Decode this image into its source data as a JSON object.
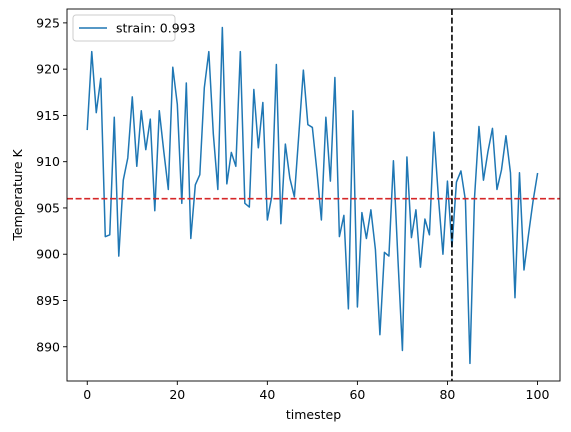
{
  "chart_data": {
    "type": "line",
    "title": "",
    "xlabel": "timestep",
    "ylabel": "Temperature K",
    "xlim": [
      -4.5,
      105
    ],
    "ylim": [
      886.3,
      926.5
    ],
    "xticks": [
      0,
      20,
      40,
      60,
      80,
      100
    ],
    "yticks": [
      890,
      895,
      900,
      905,
      910,
      915,
      920,
      925
    ],
    "grid": false,
    "legend_location": "upper left",
    "series": [
      {
        "name": "strain: 0.993",
        "color": "#1f77b4",
        "x": [
          0,
          1,
          2,
          3,
          4,
          5,
          6,
          7,
          8,
          9,
          10,
          11,
          12,
          13,
          14,
          15,
          16,
          17,
          18,
          19,
          20,
          21,
          22,
          23,
          24,
          25,
          26,
          27,
          28,
          29,
          30,
          31,
          32,
          33,
          34,
          35,
          36,
          37,
          38,
          39,
          40,
          41,
          42,
          43,
          44,
          45,
          46,
          47,
          48,
          49,
          50,
          51,
          52,
          53,
          54,
          55,
          56,
          57,
          58,
          59,
          60,
          61,
          62,
          63,
          64,
          65,
          66,
          67,
          68,
          69,
          70,
          71,
          72,
          73,
          74,
          75,
          76,
          77,
          78,
          79,
          80,
          81,
          82,
          83,
          84,
          85,
          86,
          87,
          88,
          89,
          90,
          91,
          92,
          93,
          94,
          95,
          96,
          97,
          98,
          99,
          100
        ],
        "y": [
          913.5,
          921.9,
          915.3,
          919.0,
          901.9,
          902.1,
          914.8,
          899.8,
          908.0,
          910.4,
          917.0,
          909.5,
          915.5,
          911.3,
          914.6,
          904.7,
          915.5,
          911.1,
          907.0,
          920.2,
          916.2,
          905.5,
          918.5,
          901.7,
          907.5,
          908.6,
          918.0,
          921.9,
          913.0,
          907.0,
          924.5,
          907.6,
          911.0,
          909.5,
          921.9,
          905.5,
          905.1,
          917.8,
          911.5,
          916.4,
          903.7,
          906.3,
          920.5,
          903.3,
          911.9,
          908.2,
          906.2,
          913.0,
          919.9,
          914.0,
          913.7,
          909.0,
          903.7,
          914.8,
          907.9,
          919.1,
          901.9,
          904.2,
          894.1,
          915.5,
          894.3,
          904.5,
          901.7,
          904.8,
          900.5,
          891.3,
          900.2,
          899.8,
          910.1,
          899.5,
          889.6,
          910.5,
          901.8,
          904.8,
          898.6,
          903.8,
          902.1,
          913.2,
          906.1,
          900.0,
          907.9,
          900.8,
          907.8,
          909.0,
          905.8,
          888.2,
          906.0,
          913.8,
          908.0,
          911.1,
          913.6,
          907.0,
          909.1,
          912.8,
          908.8,
          895.3,
          908.8,
          898.3,
          902.1,
          905.7,
          908.7
        ]
      }
    ],
    "annotations": [
      {
        "kind": "hline",
        "y": 906.0,
        "color": "#d62728",
        "style": "dashed"
      },
      {
        "kind": "vline",
        "x": 81.0,
        "color": "#000000",
        "style": "dashed"
      }
    ]
  }
}
